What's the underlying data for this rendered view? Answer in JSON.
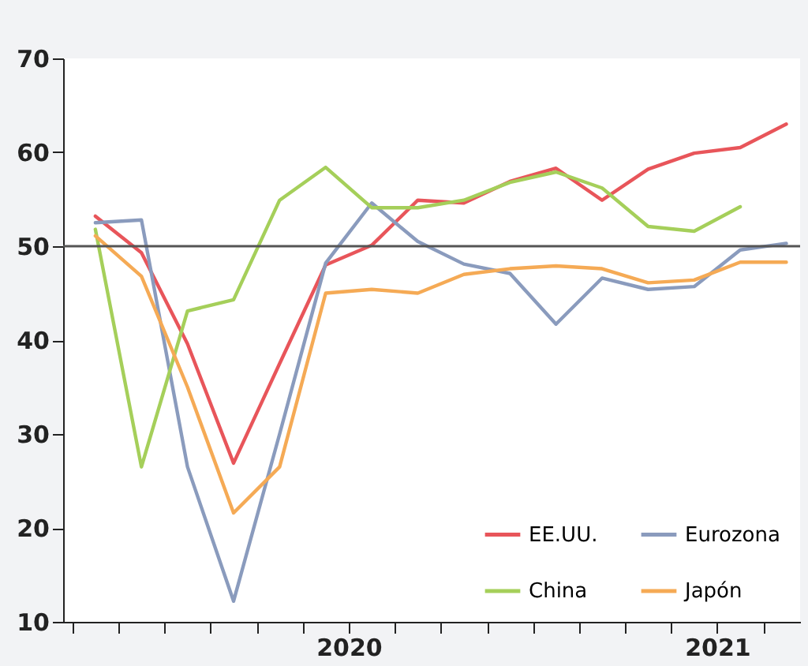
{
  "chart_data": {
    "type": "line",
    "x": [
      2019.3125,
      2019.4375,
      2019.5625,
      2019.6875,
      2019.8125,
      2019.9375,
      2020.0625,
      2020.1875,
      2020.3125,
      2020.4375,
      2020.5625,
      2020.6875,
      2020.8125,
      2020.9375,
      2021.0625,
      2021.1875
    ],
    "xlim": [
      2019.225,
      2021.225
    ],
    "xticks": [
      {
        "value": 2019.25,
        "label": null
      },
      {
        "value": 2019.375,
        "label": null
      },
      {
        "value": 2019.5,
        "label": null
      },
      {
        "value": 2019.625,
        "label": null
      },
      {
        "value": 2019.75,
        "label": null
      },
      {
        "value": 2019.875,
        "label": null
      },
      2020,
      {
        "value": 2020.125,
        "label": null
      },
      {
        "value": 2020.25,
        "label": null
      },
      {
        "value": 2020.375,
        "label": null
      },
      {
        "value": 2020.5,
        "label": null
      },
      {
        "value": 2020.625,
        "label": null
      },
      {
        "value": 2020.75,
        "label": null
      },
      {
        "value": 2020.875,
        "label": null
      },
      2021,
      {
        "value": 2021.125,
        "label": null
      }
    ],
    "ylim": [
      10,
      70
    ],
    "yticks": [
      10,
      20,
      30,
      40,
      50,
      60,
      70
    ],
    "series": [
      {
        "name": "EE.UU.",
        "color": "#e8555a",
        "values": [
          53.2,
          49.3,
          39.6,
          26.9,
          37.5,
          48.0,
          50.1,
          54.9,
          54.6,
          56.9,
          58.3,
          54.9,
          58.2,
          59.9,
          60.5,
          63.0
        ]
      },
      {
        "name": "Eurozona",
        "color": "#8a9bbd",
        "values": [
          52.5,
          52.8,
          26.5,
          12.2,
          30.0,
          48.2,
          54.6,
          50.5,
          48.1,
          47.1,
          41.7,
          46.6,
          45.4,
          45.7,
          49.6,
          50.3
        ]
      },
      {
        "name": "China",
        "color": "#a5cf5a",
        "values": [
          51.8,
          26.5,
          43.1,
          44.3,
          54.9,
          58.4,
          54.1,
          54.1,
          54.9,
          56.8,
          57.9,
          56.2,
          52.1,
          51.6,
          54.2,
          null
        ]
      },
      {
        "name": "Japón",
        "color": "#f5aa55",
        "values": [
          51.1,
          46.8,
          35.0,
          21.6,
          26.5,
          45.0,
          45.4,
          45.0,
          47.0,
          47.6,
          47.9,
          47.6,
          46.1,
          46.4,
          48.3,
          48.3
        ]
      }
    ],
    "ref_lines": [
      {
        "axis": "y",
        "value": 50,
        "color": "#555555"
      }
    ],
    "legend": "bottom right",
    "grid": false,
    "line_style": "solid",
    "marker": "none"
  }
}
